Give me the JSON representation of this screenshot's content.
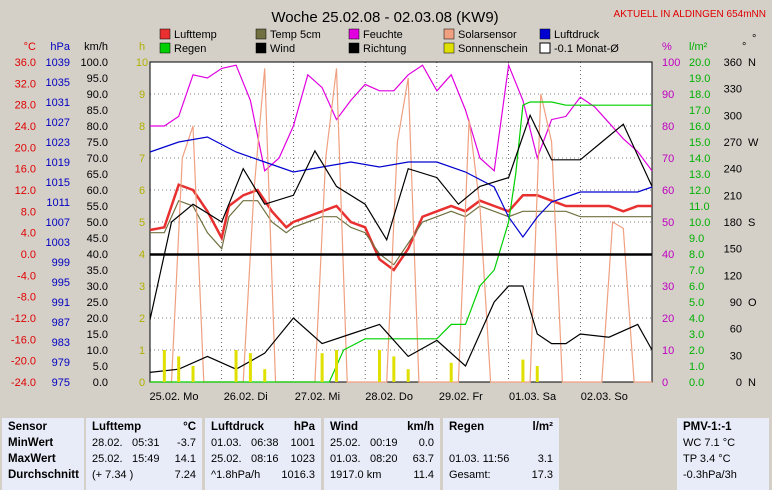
{
  "header": {
    "title": "Woche 25.02.08 - 02.03.08 (KW9)",
    "live_label": "AKTUELL IN ALDINGEN 654mNN"
  },
  "chart_data": {
    "type": "line",
    "title": "Woche 25.02.08 - 02.03.08 (KW9)",
    "x_labels": [
      "25.02. Mo",
      "26.02. Di",
      "27.02. Mi",
      "28.02. Do",
      "29.02. Fr",
      "01.03. Sa",
      "02.03. So"
    ],
    "x_days": [
      0,
      1,
      2,
      3,
      4,
      5,
      6
    ],
    "xlim": [
      0,
      7
    ],
    "axes": [
      {
        "unit": "°C",
        "min": -24,
        "max": 36,
        "ticks": [
          "36.0",
          "32.0",
          "28.0",
          "24.0",
          "20.0",
          "16.0",
          "12.0",
          "8.0",
          "4.0",
          "0.0",
          "-4.0",
          "-8.0",
          "-12.0",
          "-16.0",
          "-20.0",
          "-24.0"
        ],
        "color": "#e00000"
      },
      {
        "unit": "hPa",
        "min": 975,
        "max": 1039,
        "ticks": [
          "1039",
          "1035",
          "1031",
          "1027",
          "1023",
          "1019",
          "1015",
          "1011",
          "1007",
          "1003",
          "999",
          "995",
          "991",
          "987",
          "983",
          "979",
          "975"
        ],
        "color": "#0000c0"
      },
      {
        "unit": "km/h",
        "min": 0,
        "max": 100,
        "ticks": [
          "100.0",
          "95.0",
          "90.0",
          "85.0",
          "80.0",
          "75.0",
          "70.0",
          "65.0",
          "60.0",
          "55.0",
          "50.0",
          "45.0",
          "40.0",
          "35.0",
          "30.0",
          "25.0",
          "20.0",
          "15.0",
          "10.0",
          "5.0",
          "0.0"
        ],
        "color": "#000000"
      },
      {
        "unit": "h",
        "min": 0,
        "max": 10,
        "ticks": [
          "10",
          "9",
          "8",
          "7",
          "6",
          "5",
          "4",
          "3",
          "2",
          "1",
          "0"
        ],
        "color": "#b0b000"
      },
      {
        "unit": "%",
        "min": 0,
        "max": 100,
        "ticks": [
          "100",
          "90",
          "80",
          "70",
          "60",
          "50",
          "40",
          "30",
          "20",
          "10",
          "0"
        ],
        "color": "#c000c0"
      },
      {
        "unit": "l/m²",
        "min": 0,
        "max": 20,
        "ticks": [
          "20.0",
          "19.0",
          "18.0",
          "17.0",
          "16.0",
          "15.0",
          "14.0",
          "13.0",
          "12.0",
          "11.0",
          "10.0",
          "9.0",
          "8.0",
          "7.0",
          "6.0",
          "5.0",
          "4.0",
          "3.0",
          "2.0",
          "1.0",
          "0.0"
        ],
        "color": "#00b000"
      },
      {
        "unit": "°",
        "min": 0,
        "max": 360,
        "ticks": [
          "360",
          "330",
          "300",
          "270",
          "240",
          "210",
          "180",
          "150",
          "120",
          "90",
          "60",
          "30",
          "0"
        ],
        "color": "#000000"
      }
    ],
    "direction_labels": [
      "N",
      "W",
      "S",
      "O",
      "N"
    ],
    "grid": "on",
    "legend": [
      {
        "name": "Lufttemp",
        "color": "#e83030"
      },
      {
        "name": "Temp 5cm",
        "color": "#707040"
      },
      {
        "name": "Feuchte",
        "color": "#e000e0"
      },
      {
        "name": "Solarsensor",
        "color": "#f0a080"
      },
      {
        "name": "Luftdruck",
        "color": "#0000d0"
      },
      {
        "name": "Regen",
        "color": "#00d000"
      },
      {
        "name": "Wind",
        "color": "#000000"
      },
      {
        "name": "Richtung",
        "color": "#000000"
      },
      {
        "name": "Sonnenschein",
        "color": "#e0e000"
      },
      {
        "name": "-0.1 Monat-Ø",
        "color": "#000000"
      }
    ],
    "series": [
      {
        "name": "Lufttemp",
        "axis": "°C",
        "color": "#e83030",
        "x": [
          0,
          0.2,
          0.4,
          0.6,
          0.8,
          1.0,
          1.1,
          1.3,
          1.5,
          1.7,
          1.9,
          2.0,
          2.2,
          2.4,
          2.6,
          2.8,
          3.0,
          3.2,
          3.4,
          3.6,
          3.8,
          4.0,
          4.2,
          4.4,
          4.6,
          4.8,
          5.0,
          5.2,
          5.4,
          5.6,
          5.8,
          6.0,
          6.2,
          6.4,
          6.6,
          6.8,
          7.0
        ],
        "y": [
          4.5,
          5,
          13,
          12,
          8,
          3,
          9,
          11,
          12,
          8,
          5,
          6,
          7,
          8,
          9,
          6,
          5,
          -1,
          -3,
          1,
          7,
          8,
          9,
          8,
          10,
          9,
          8,
          11,
          11,
          10,
          9,
          9,
          9,
          9,
          8,
          9,
          9
        ]
      },
      {
        "name": "Temp 5cm",
        "axis": "°C",
        "color": "#707040",
        "x": [
          0,
          0.2,
          0.4,
          0.6,
          0.8,
          1.0,
          1.1,
          1.3,
          1.5,
          1.7,
          1.9,
          2.0,
          2.2,
          2.4,
          2.6,
          2.8,
          3.0,
          3.2,
          3.4,
          3.6,
          3.8,
          4.0,
          4.2,
          4.4,
          4.6,
          4.8,
          5.0,
          5.2,
          5.4,
          5.6,
          5.8,
          6.0,
          6.2,
          6.4,
          6.6,
          6.8,
          7.0
        ],
        "y": [
          4,
          4,
          10,
          9,
          4,
          1,
          7,
          10,
          10,
          6,
          4,
          5,
          6,
          7,
          7,
          5,
          4,
          0,
          -2,
          2,
          6,
          7,
          8,
          7,
          9,
          8,
          7,
          8,
          8,
          8,
          8,
          7,
          7,
          7,
          7,
          7,
          7
        ]
      },
      {
        "name": "Feuchte",
        "axis": "%",
        "color": "#e000e0",
        "x": [
          0,
          0.2,
          0.4,
          0.6,
          0.8,
          1.0,
          1.2,
          1.4,
          1.6,
          1.8,
          2.0,
          2.2,
          2.4,
          2.6,
          2.8,
          3.0,
          3.2,
          3.4,
          3.6,
          3.8,
          4.0,
          4.2,
          4.4,
          4.6,
          4.8,
          5.0,
          5.2,
          5.4,
          5.6,
          5.8,
          6.0,
          6.2,
          6.4,
          6.6,
          6.8,
          7.0
        ],
        "y": [
          80,
          80,
          83,
          96,
          95,
          98,
          99,
          88,
          66,
          70,
          80,
          96,
          92,
          82,
          88,
          93,
          91,
          91,
          96,
          99,
          91,
          96,
          85,
          70,
          66,
          99,
          88,
          70,
          82,
          83,
          89,
          86,
          81,
          76,
          72,
          66
        ]
      },
      {
        "name": "Solarsensor",
        "axis": "%",
        "color": "#f0a080",
        "x": [
          0,
          0.3,
          0.45,
          0.6,
          0.75,
          1.0,
          1.3,
          1.45,
          1.6,
          1.75,
          2.0,
          2.3,
          2.45,
          2.6,
          2.75,
          3.0,
          3.3,
          3.45,
          3.6,
          3.75,
          4.0,
          4.3,
          4.45,
          4.6,
          4.75,
          5.0,
          5.3,
          5.45,
          5.6,
          5.75,
          6.0,
          6.3,
          6.45,
          6.6,
          6.75,
          7.0
        ],
        "y": [
          0,
          0,
          70,
          80,
          0,
          0,
          0,
          60,
          98,
          0,
          0,
          0,
          70,
          98,
          0,
          0,
          0,
          75,
          95,
          0,
          0,
          0,
          82,
          55,
          0,
          0,
          0,
          90,
          75,
          0,
          0,
          0,
          50,
          48,
          0,
          0
        ]
      },
      {
        "name": "Luftdruck",
        "axis": "hPa",
        "color": "#0000d0",
        "x": [
          0,
          0.4,
          0.8,
          1.2,
          1.6,
          2.0,
          2.4,
          2.8,
          3.2,
          3.6,
          4.0,
          4.4,
          4.8,
          5.0,
          5.2,
          5.4,
          5.6,
          5.8,
          6.0,
          6.4,
          6.8,
          7.0
        ],
        "y": [
          1021,
          1023,
          1024,
          1021,
          1019,
          1017,
          1018,
          1019,
          1018,
          1019,
          1019,
          1017,
          1014,
          1008,
          1004,
          1008,
          1011,
          1012,
          1013,
          1013,
          1013,
          1014
        ]
      },
      {
        "name": "Regen",
        "axis": "l/m²",
        "color": "#00d000",
        "x": [
          0,
          2.3,
          2.5,
          2.7,
          3.0,
          3.5,
          4.0,
          4.2,
          4.4,
          4.6,
          4.8,
          5.0,
          5.1,
          5.2,
          5.3,
          5.6,
          5.8,
          6.0,
          6.5,
          7.0
        ],
        "y": [
          0,
          0,
          0,
          2,
          2.7,
          2.7,
          2.7,
          3.6,
          3.6,
          6.0,
          7.0,
          10.0,
          13.0,
          17.3,
          17.5,
          17.5,
          17.3,
          17.3,
          17.3,
          17.3
        ]
      },
      {
        "name": "Wind",
        "axis": "km/h",
        "color": "#000000",
        "x": [
          0,
          0.4,
          0.8,
          1.2,
          1.6,
          2.0,
          2.4,
          2.8,
          3.2,
          3.6,
          4.0,
          4.4,
          4.8,
          5.0,
          5.2,
          5.4,
          5.6,
          5.8,
          6.0,
          6.4,
          6.8,
          7.0
        ],
        "y": [
          3,
          4,
          8,
          4,
          9,
          20,
          12,
          15,
          18,
          8,
          13,
          5,
          25,
          30,
          30,
          15,
          12,
          12,
          15,
          14,
          18,
          10
        ]
      },
      {
        "name": "Richtung",
        "axis": "°",
        "color": "#000000",
        "x": [
          0,
          0.3,
          0.6,
          1.0,
          1.3,
          1.6,
          2.0,
          2.3,
          2.6,
          3.0,
          3.3,
          3.6,
          4.0,
          4.3,
          4.6,
          5.0,
          5.3,
          5.6,
          6.0,
          6.3,
          6.6,
          7.0
        ],
        "y": [
          70,
          180,
          200,
          180,
          240,
          200,
          210,
          260,
          220,
          200,
          160,
          240,
          230,
          200,
          220,
          230,
          300,
          250,
          250,
          270,
          290,
          220
        ]
      },
      {
        "name": "Sonnenschein",
        "axis": "h",
        "color": "#e0e000",
        "x": [
          0.2,
          0.4,
          0.6,
          1.2,
          1.4,
          1.6,
          2.2,
          2.4,
          2.6,
          3.2,
          3.4,
          3.6,
          4.2,
          4.4,
          4.6,
          5.2,
          5.4,
          5.6
        ],
        "y": [
          1.0,
          0.8,
          0.5,
          1.0,
          0.9,
          0.4,
          0.0,
          0.9,
          1.0,
          1.0,
          0.8,
          0.4,
          0.6,
          0.0,
          0.0,
          0.7,
          0.5,
          0.0
        ]
      },
      {
        "name": "-0.1 Monat-Ø",
        "axis": "°C",
        "color": "#000000",
        "x": [
          0,
          7
        ],
        "y": [
          -0.1,
          -0.1
        ]
      }
    ]
  },
  "table": {
    "sensor": {
      "header": "Sensor",
      "rows": [
        "MinWert",
        "MaxWert",
        "Durchschnitt"
      ]
    },
    "lufttemp": {
      "header": "Lufttemp",
      "unit": "°C",
      "rows": [
        [
          "28.02.",
          "05:31",
          "-3.7"
        ],
        [
          "25.02.",
          "15:49",
          "14.1"
        ],
        [
          "(+ 7.34 )",
          "",
          "7.24"
        ]
      ]
    },
    "luftdruck": {
      "header": "Luftdruck",
      "unit": "hPa",
      "rows": [
        [
          "01.03.",
          "06:38",
          "1001"
        ],
        [
          "25.02.",
          "08:16",
          "1023"
        ],
        [
          "^1.8hPa/h",
          "",
          "1016.3"
        ]
      ]
    },
    "wind": {
      "header": "Wind",
      "unit": "km/h",
      "rows": [
        [
          "25.02.",
          "00:19",
          "0.0"
        ],
        [
          "01.03.",
          "08:20",
          "63.7"
        ],
        [
          "1917.0 km",
          "",
          "11.4"
        ]
      ]
    },
    "regen": {
      "header": "Regen",
      "unit": "l/m²",
      "rows": [
        [
          "",
          ""
        ],
        [
          "01.03.  11:56",
          "3.1"
        ],
        [
          "Gesamt:",
          "17.3"
        ]
      ]
    },
    "pmv": {
      "header": "PMV-1:-1",
      "rows": [
        "WC 7.1 °C",
        "TP 3.4 °C",
        "-0.3hPa/3h"
      ]
    }
  }
}
